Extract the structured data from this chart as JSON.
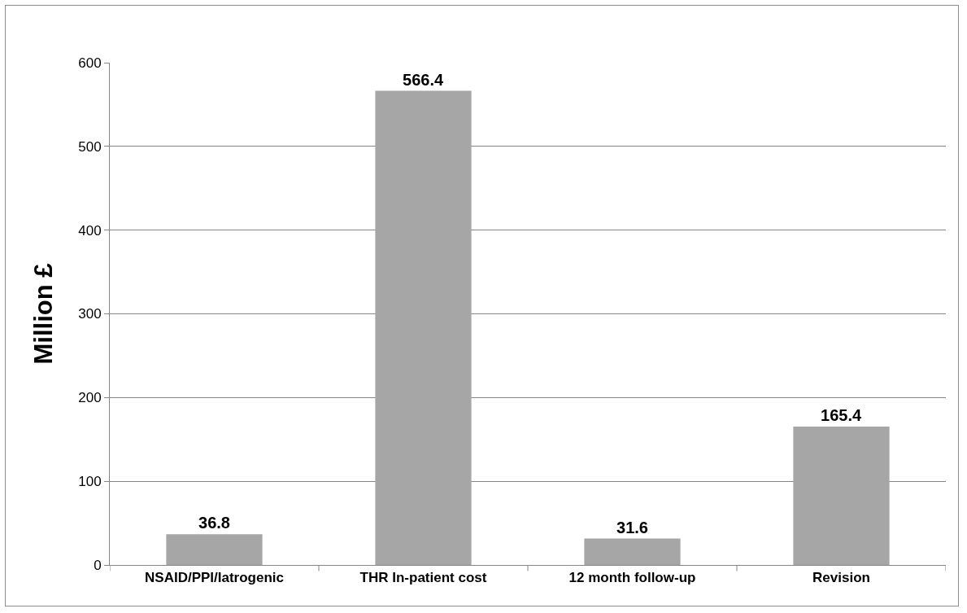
{
  "chart_data": {
    "type": "bar",
    "ylabel": "Million £",
    "categories": [
      "NSAID/PPI/Iatrogenic",
      "THR In-patient cost",
      "12 month follow-up",
      "Revision"
    ],
    "values": [
      36.8,
      566.4,
      31.6,
      165.4
    ],
    "color": "#a6a6a6",
    "ylim": [
      0,
      600
    ],
    "yticks": [
      0,
      100,
      200,
      300,
      400,
      500,
      600
    ],
    "grid": "y",
    "data_labels": true,
    "legend": false
  }
}
